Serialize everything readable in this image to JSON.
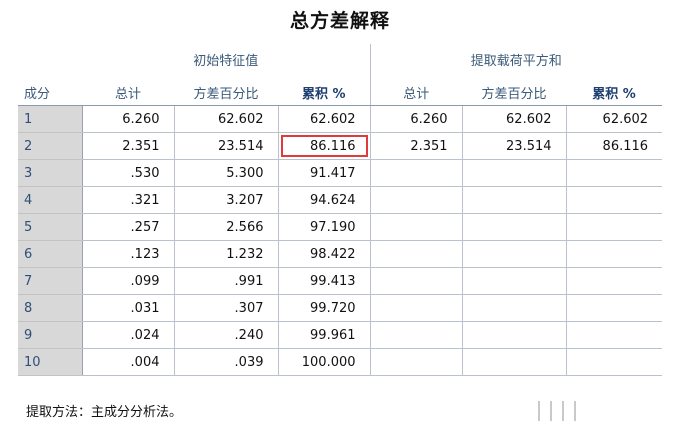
{
  "title": "总方差解释",
  "group_headers": {
    "initial": "初始特征值",
    "extracted": "提取载荷平方和"
  },
  "column_headers": {
    "component": "成分",
    "total": "总计",
    "variance_pct": "方差百分比",
    "cumulative_pct": "累积 %",
    "total2": "总计",
    "variance_pct2": "方差百分比",
    "cumulative_pct2": "累积 %"
  },
  "rows": [
    {
      "id": "1",
      "total": "6.260",
      "var": "62.602",
      "cum": "62.602",
      "e_total": "6.260",
      "e_var": "62.602",
      "e_cum": "62.602"
    },
    {
      "id": "2",
      "total": "2.351",
      "var": "23.514",
      "cum": "86.116",
      "e_total": "2.351",
      "e_var": "23.514",
      "e_cum": "86.116"
    },
    {
      "id": "3",
      "total": ".530",
      "var": "5.300",
      "cum": "91.417",
      "e_total": "",
      "e_var": "",
      "e_cum": ""
    },
    {
      "id": "4",
      "total": ".321",
      "var": "3.207",
      "cum": "94.624",
      "e_total": "",
      "e_var": "",
      "e_cum": ""
    },
    {
      "id": "5",
      "total": ".257",
      "var": "2.566",
      "cum": "97.190",
      "e_total": "",
      "e_var": "",
      "e_cum": ""
    },
    {
      "id": "6",
      "total": ".123",
      "var": "1.232",
      "cum": "98.422",
      "e_total": "",
      "e_var": "",
      "e_cum": ""
    },
    {
      "id": "7",
      "total": ".099",
      "var": ".991",
      "cum": "99.413",
      "e_total": "",
      "e_var": "",
      "e_cum": ""
    },
    {
      "id": "8",
      "total": ".031",
      "var": ".307",
      "cum": "99.720",
      "e_total": "",
      "e_var": "",
      "e_cum": ""
    },
    {
      "id": "9",
      "total": ".024",
      "var": ".240",
      "cum": "99.961",
      "e_total": "",
      "e_var": "",
      "e_cum": ""
    },
    {
      "id": "10",
      "total": ".004",
      "var": ".039",
      "cum": "100.000",
      "e_total": "",
      "e_var": "",
      "e_cum": ""
    }
  ],
  "footnote": "提取方法：主成分分析法。",
  "colors": {
    "highlight_border": "#e03a3a",
    "header_text": "#3a5a7a",
    "row_label_bg": "#d8d8d8"
  }
}
